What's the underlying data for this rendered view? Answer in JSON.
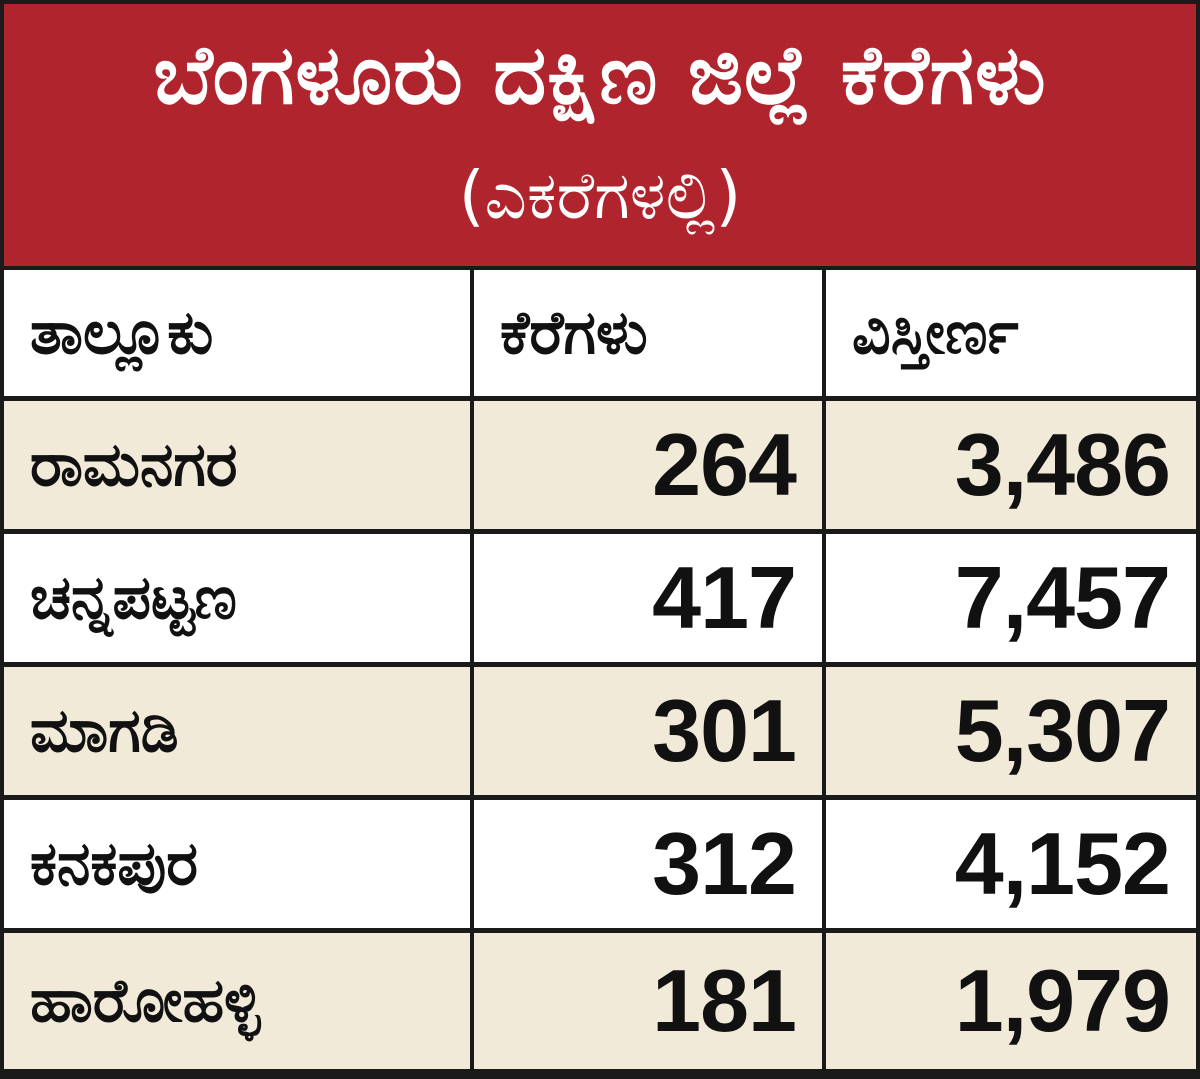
{
  "header": {
    "title": "ಬೆಂಗಳೂರು ದಕ್ಷಿಣ ಜಿಲ್ಲೆ ಕೆರೆಗಳು",
    "subtitle": "(ಎಕರೆಗಳಲ್ಲಿ)"
  },
  "table": {
    "columns": [
      "ತಾಲ್ಲೂಕು",
      "ಕೆರೆಗಳು",
      "ವಿಸ್ತೀರ್ಣ"
    ],
    "rows": [
      {
        "taluk": "ರಾಮನಗರ",
        "lakes": "264",
        "area": "3,486"
      },
      {
        "taluk": "ಚನ್ನಪಟ್ಟಣ",
        "lakes": "417",
        "area": "7,457"
      },
      {
        "taluk": "ಮಾಗಡಿ",
        "lakes": "301",
        "area": "5,307"
      },
      {
        "taluk": "ಕನಕಪುರ",
        "lakes": "312",
        "area": "4,152"
      },
      {
        "taluk": "ಹಾರೋಹಳ್ಳಿ",
        "lakes": "181",
        "area": "1,979"
      }
    ]
  },
  "colors": {
    "header_background": "#b0242e",
    "header_text": "#ffffff",
    "row_shaded": "#f1ead8",
    "row_plain": "#ffffff",
    "border": "#1a1a1a"
  }
}
